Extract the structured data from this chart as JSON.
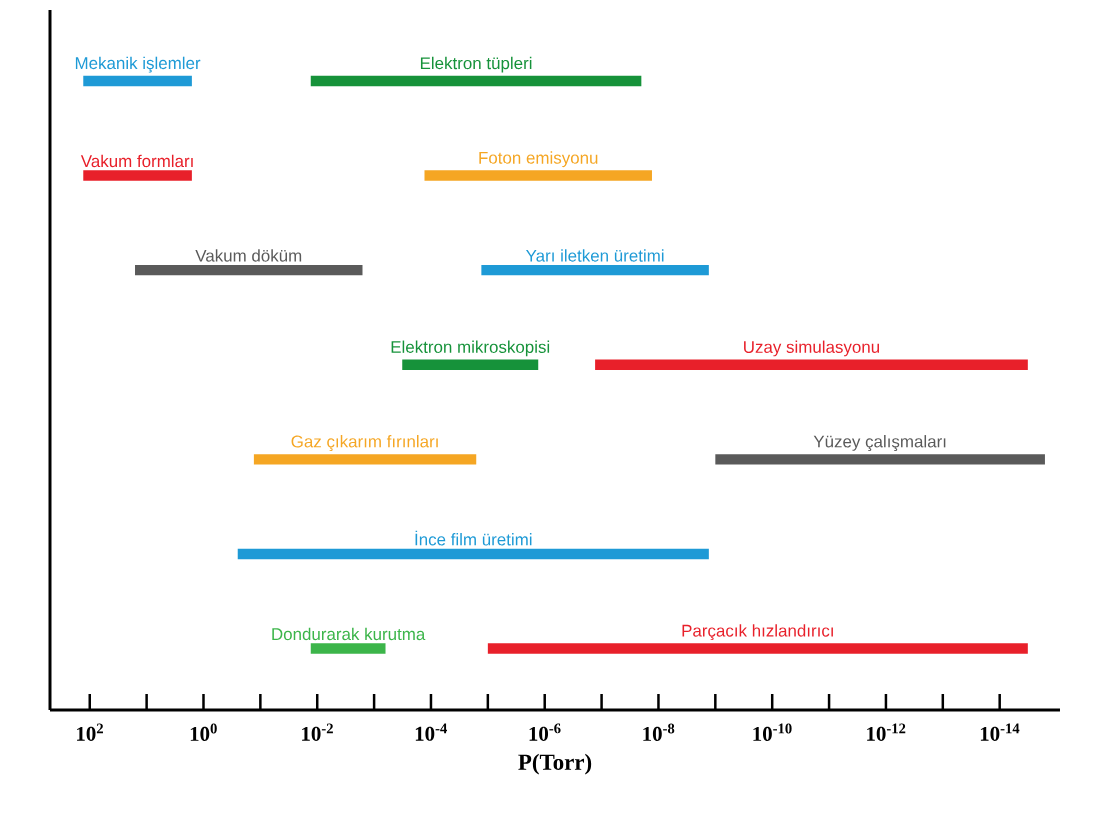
{
  "chart_data": {
    "type": "bar",
    "orientation": "horizontal",
    "log": "x",
    "xlabel": "P(Torr)",
    "categories": [
      null,
      null,
      null,
      null,
      null,
      null,
      null
    ],
    "xlim": [
      500,
      8.7e-16
    ],
    "xticks": [
      {
        "value": 100,
        "label": "10$^{2}$"
      },
      {
        "value": 10,
        "label": null
      },
      {
        "value": 1,
        "label": "10$^{0}$"
      },
      {
        "value": 0.1,
        "label": null
      },
      {
        "value": 0.01,
        "label": "10$^{-2}$"
      },
      {
        "value": 0.001,
        "label": null
      },
      {
        "value": 0.0001,
        "label": "10$^{-4}$"
      },
      {
        "value": 1e-05,
        "label": null
      },
      {
        "value": 1e-06,
        "label": "10$^{-6}$"
      },
      {
        "value": 1e-07,
        "label": null
      },
      {
        "value": 1e-08,
        "label": "10$^{-8}$"
      },
      {
        "value": 1e-09,
        "label": null
      },
      {
        "value": 1e-10,
        "label": "10$^{-10}$"
      },
      {
        "value": 1e-11,
        "label": null
      },
      {
        "value": 1e-12,
        "label": "10$^{-12}$"
      },
      {
        "value": 1e-13,
        "label": null
      },
      {
        "value": 1e-14,
        "label": "10$^{-14}$"
      }
    ],
    "series": [
      {
        "base": [
          130,
          130,
          16,
          0.00032,
          0.13,
          0.25,
          0.013
        ],
        "values": [
          -128.4,
          -128.4,
          -15.9984,
          -0.0003187,
          -0.129984,
          -0.2499999987,
          -0.01237
        ],
        "colors": [
          "#1e9ad6",
          "#e8202a",
          "#5a5a5a",
          "#16923a",
          "#f5a623",
          "#1e9ad6",
          "#3cb54a"
        ],
        "value_labels": [
          "Mekanik işlemler",
          "Vakum formları",
          "Vakum döküm",
          "Elektron mikroskopisi",
          "Gaz çıkarım fırınları",
          "İnce film üretimi",
          "Dondurarak kurutma"
        ]
      },
      {
        "base": [
          0.013,
          0.00013,
          1.3e-05,
          1.3e-07,
          1e-09,
          null,
          1e-05
        ],
        "values": [
          -0.01299998,
          -0.000129987,
          -1.29987e-05,
          -1.299999968e-07,
          -9.999984e-10,
          null,
          -9.9999999968e-06
        ],
        "colors": [
          "#16923a",
          "#f5a623",
          "#1e9ad6",
          "#e8202a",
          "#5a5a5a",
          null,
          "#e8202a"
        ],
        "value_labels": [
          "Elektron tüpleri",
          "Foton emisyonu",
          "Yarı iletken üretimi",
          "Uzay simulasyonu",
          "Yüzey çalışmaları",
          null,
          "Parçacık hızlandırıcı"
        ]
      }
    ]
  }
}
